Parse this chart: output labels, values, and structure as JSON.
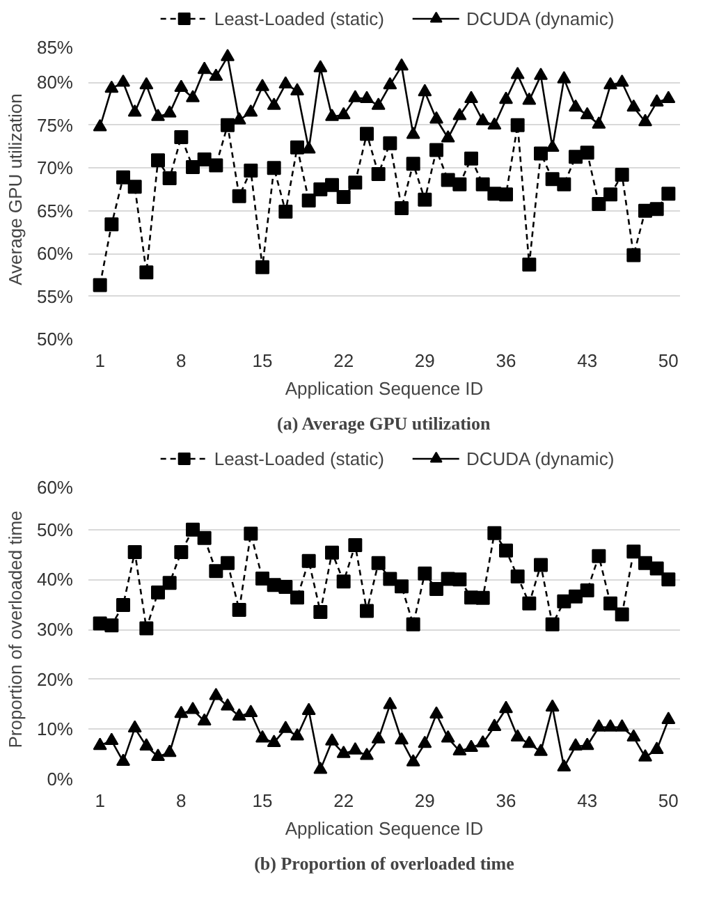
{
  "chart_data": [
    {
      "type": "line",
      "title": "(a) Average GPU utilization",
      "xlabel": "Application Sequence ID",
      "ylabel": "Average GPU utilization",
      "x": [
        1,
        2,
        3,
        4,
        5,
        6,
        7,
        8,
        9,
        10,
        11,
        12,
        13,
        14,
        15,
        16,
        17,
        18,
        19,
        20,
        21,
        22,
        23,
        24,
        25,
        26,
        27,
        28,
        29,
        30,
        31,
        32,
        33,
        34,
        35,
        36,
        37,
        38,
        39,
        40,
        41,
        42,
        43,
        44,
        45,
        46,
        47,
        48,
        49,
        50
      ],
      "xlim": [
        0,
        51
      ],
      "xticks": [
        1,
        8,
        15,
        22,
        29,
        36,
        43,
        50
      ],
      "ylim": [
        50,
        85
      ],
      "yticks": [
        {
          "value": 50,
          "label": "50%"
        },
        {
          "value": 55,
          "label": "55%"
        },
        {
          "value": 60,
          "label": "60%"
        },
        {
          "value": 65,
          "label": "65%"
        },
        {
          "value": 70,
          "label": "70%"
        },
        {
          "value": 75,
          "label": "75%"
        },
        {
          "value": 80,
          "label": "80%"
        },
        {
          "value": 85,
          "label": "85%"
        }
      ],
      "grid": "y",
      "legend": "top",
      "series": [
        {
          "name": "Least-Loaded (static)",
          "color": "#000000",
          "marker": "square",
          "line_style": "dashed",
          "values": [
            56.3,
            63.4,
            68.9,
            67.8,
            57.8,
            70.9,
            68.8,
            73.6,
            70.1,
            71.0,
            70.3,
            75.0,
            66.7,
            69.7,
            58.4,
            70.0,
            64.9,
            72.4,
            66.2,
            67.5,
            68.0,
            66.6,
            68.3,
            74.0,
            69.3,
            72.9,
            65.3,
            70.5,
            66.3,
            72.1,
            68.6,
            68.1,
            71.1,
            68.1,
            67.0,
            66.9,
            75.0,
            58.7,
            71.7,
            68.7,
            68.1,
            71.3,
            71.8,
            65.8,
            66.9,
            69.2,
            59.8,
            65.0,
            65.2,
            67.0
          ]
        },
        {
          "name": "DCUDA (dynamic)",
          "color": "#000000",
          "marker": "triangle",
          "line_style": "solid",
          "values": [
            74.8,
            79.3,
            80.0,
            76.5,
            79.7,
            76.0,
            76.4,
            79.4,
            78.2,
            81.5,
            80.7,
            83.0,
            75.6,
            76.5,
            79.5,
            77.3,
            79.8,
            79.0,
            72.2,
            81.7,
            76.0,
            76.2,
            78.2,
            78.1,
            77.3,
            79.7,
            81.9,
            73.9,
            78.9,
            75.7,
            73.5,
            76.1,
            78.1,
            75.5,
            75.0,
            78.0,
            80.9,
            77.9,
            80.8,
            72.4,
            80.4,
            77.1,
            76.2,
            75.1,
            79.7,
            80.0,
            77.1,
            75.4,
            77.7,
            78.1
          ]
        }
      ]
    },
    {
      "type": "line",
      "title": "(b) Proportion of overloaded time",
      "xlabel": "Application Sequence ID",
      "ylabel": "Proportion of overloaded time",
      "x": [
        1,
        2,
        3,
        4,
        5,
        6,
        7,
        8,
        9,
        10,
        11,
        12,
        13,
        14,
        15,
        16,
        17,
        18,
        19,
        20,
        21,
        22,
        23,
        24,
        25,
        26,
        27,
        28,
        29,
        30,
        31,
        32,
        33,
        34,
        35,
        36,
        37,
        38,
        39,
        40,
        41,
        42,
        43,
        44,
        45,
        46,
        47,
        48,
        49,
        50
      ],
      "xlim": [
        0,
        51
      ],
      "xticks": [
        1,
        8,
        15,
        22,
        29,
        36,
        43,
        50
      ],
      "ylim": [
        0,
        60
      ],
      "yticks": [
        {
          "value": 0,
          "label": "0%"
        },
        {
          "value": 10,
          "label": "10%"
        },
        {
          "value": 20,
          "label": "20%"
        },
        {
          "value": 30,
          "label": "30%"
        },
        {
          "value": 40,
          "label": "40%"
        },
        {
          "value": 50,
          "label": "50%"
        },
        {
          "value": 60,
          "label": "60%"
        }
      ],
      "grid": "y",
      "legend": "top",
      "series": [
        {
          "name": "Least-Loaded (static)",
          "color": "#000000",
          "marker": "square",
          "line_style": "dashed",
          "values": [
            31.2,
            30.8,
            34.9,
            45.5,
            30.2,
            37.4,
            39.3,
            45.5,
            50.0,
            48.3,
            41.7,
            43.3,
            33.9,
            49.2,
            40.2,
            38.9,
            38.5,
            36.4,
            43.7,
            33.5,
            45.4,
            39.6,
            46.9,
            33.7,
            43.3,
            40.1,
            38.6,
            31.0,
            41.2,
            38.1,
            40.1,
            40.0,
            36.4,
            36.3,
            49.3,
            45.8,
            40.6,
            35.2,
            42.9,
            31.0,
            35.6,
            36.6,
            37.8,
            44.7,
            35.2,
            33.0,
            45.6,
            43.3,
            42.2,
            40.0
          ]
        },
        {
          "name": "DCUDA (dynamic)",
          "color": "#000000",
          "marker": "triangle",
          "line_style": "solid",
          "values": [
            6.7,
            7.7,
            3.5,
            10.2,
            6.6,
            4.5,
            5.3,
            13.1,
            13.9,
            11.6,
            16.7,
            14.6,
            12.6,
            13.3,
            8.2,
            7.3,
            10.1,
            8.6,
            13.7,
            1.9,
            7.6,
            5.1,
            5.8,
            4.7,
            8.0,
            14.9,
            7.8,
            3.4,
            7.1,
            13.0,
            8.2,
            5.6,
            6.3,
            7.2,
            10.5,
            14.1,
            8.4,
            7.1,
            5.5,
            14.4,
            2.4,
            6.6,
            6.7,
            10.4,
            10.4,
            10.4,
            8.4,
            4.4,
            5.9,
            11.9
          ]
        }
      ]
    }
  ]
}
